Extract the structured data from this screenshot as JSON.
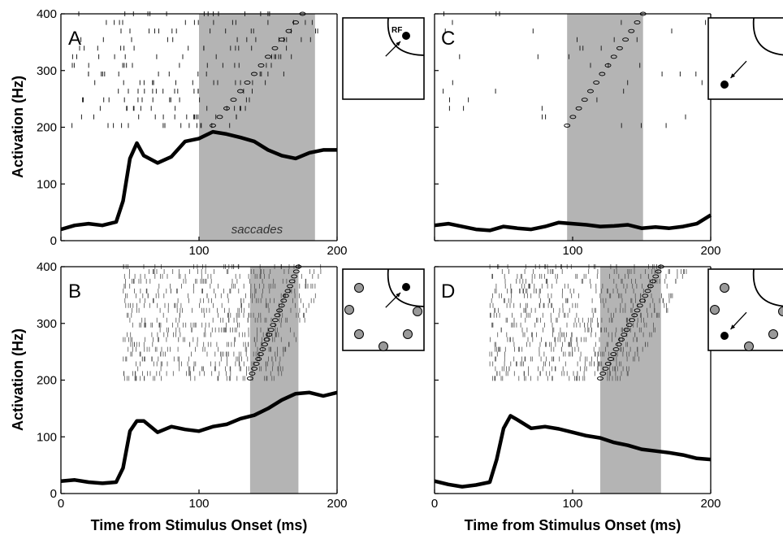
{
  "chart_data": [
    {
      "type": "line",
      "panel": "A",
      "ylabel": "Activation (Hz)",
      "xlabel": "",
      "xlim": [
        0,
        200
      ],
      "ylim": [
        0,
        400
      ],
      "xticks": [
        "",
        "100",
        "200"
      ],
      "yticks": [
        "0",
        "100",
        "200",
        "300",
        "400"
      ],
      "shade": [
        100,
        184
      ],
      "annotation": "saccades",
      "raster": {
        "rows": 14,
        "spread": "broad",
        "x_start": 8,
        "saccade_range": [
          110,
          175
        ],
        "density": "low"
      },
      "inset": {
        "type": "single",
        "rf_label": "RF"
      },
      "x": [
        0,
        10,
        20,
        30,
        40,
        45,
        50,
        55,
        60,
        70,
        80,
        90,
        100,
        110,
        120,
        130,
        140,
        150,
        160,
        170,
        180,
        190,
        200
      ],
      "y": [
        20,
        27,
        30,
        27,
        33,
        70,
        145,
        172,
        150,
        137,
        148,
        175,
        180,
        192,
        188,
        182,
        175,
        160,
        150,
        145,
        155,
        160,
        160
      ]
    },
    {
      "type": "line",
      "panel": "B",
      "ylabel": "Activation (Hz)",
      "xlabel": "Time from Stimulus Onset (ms)",
      "xlim": [
        0,
        200
      ],
      "ylim": [
        0,
        400
      ],
      "xticks": [
        "0",
        "100",
        "200"
      ],
      "yticks": [
        "0",
        "100",
        "200",
        "300",
        "400"
      ],
      "shade": [
        137,
        172
      ],
      "raster": {
        "rows": 24,
        "spread": "dense",
        "x_start": 45,
        "saccade_range": [
          137,
          172
        ],
        "density": "high"
      },
      "inset": {
        "type": "array",
        "rf_label": ""
      },
      "x": [
        0,
        10,
        20,
        30,
        40,
        45,
        50,
        55,
        60,
        70,
        80,
        90,
        100,
        110,
        120,
        130,
        140,
        150,
        160,
        170,
        180,
        190,
        200
      ],
      "y": [
        22,
        24,
        20,
        18,
        20,
        45,
        110,
        128,
        128,
        108,
        118,
        113,
        110,
        118,
        122,
        132,
        138,
        150,
        165,
        176,
        178,
        172,
        178
      ]
    },
    {
      "type": "line",
      "panel": "C",
      "ylabel": "",
      "xlabel": "",
      "xlim": [
        0,
        200
      ],
      "ylim": [
        0,
        400
      ],
      "xticks": [
        "",
        "100",
        "200"
      ],
      "yticks": [],
      "shade": [
        96,
        151
      ],
      "raster": {
        "rows": 14,
        "spread": "sparse",
        "x_start": 5,
        "saccade_range": [
          96,
          151
        ],
        "density": "low"
      },
      "inset": {
        "type": "single",
        "rf_label": ""
      },
      "x": [
        0,
        10,
        20,
        30,
        40,
        50,
        60,
        70,
        80,
        90,
        100,
        110,
        120,
        130,
        140,
        150,
        160,
        170,
        180,
        190,
        200
      ],
      "y": [
        27,
        30,
        25,
        20,
        18,
        25,
        22,
        20,
        25,
        32,
        30,
        28,
        25,
        26,
        28,
        22,
        24,
        22,
        25,
        30,
        45
      ]
    },
    {
      "type": "line",
      "panel": "D",
      "ylabel": "",
      "xlabel": "Time from Stimulus Onset (ms)",
      "xlim": [
        0,
        200
      ],
      "ylim": [
        0,
        400
      ],
      "xticks": [
        "0",
        "100",
        "200"
      ],
      "yticks": [],
      "shade": [
        120,
        164
      ],
      "raster": {
        "rows": 24,
        "spread": "dense",
        "x_start": 40,
        "saccade_range": [
          120,
          164
        ],
        "density": "high"
      },
      "inset": {
        "type": "array",
        "rf_label": ""
      },
      "x": [
        0,
        10,
        20,
        30,
        40,
        45,
        50,
        55,
        60,
        70,
        80,
        90,
        100,
        110,
        120,
        130,
        140,
        150,
        160,
        170,
        180,
        190,
        200
      ],
      "y": [
        22,
        16,
        12,
        15,
        20,
        60,
        115,
        137,
        130,
        115,
        118,
        114,
        108,
        102,
        98,
        90,
        85,
        78,
        75,
        72,
        68,
        62,
        60
      ]
    }
  ]
}
